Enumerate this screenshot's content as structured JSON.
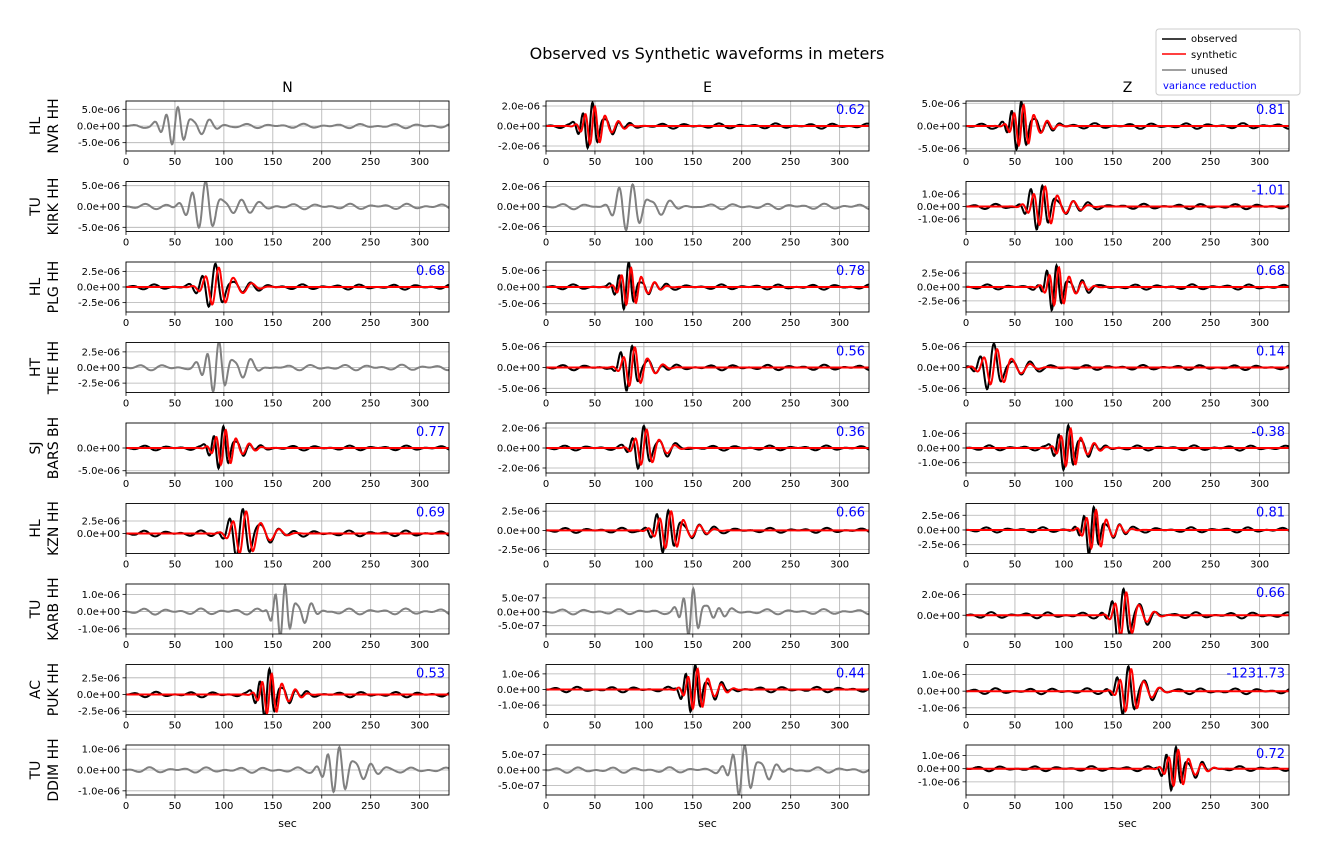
{
  "title": "Observed vs Synthetic waveforms in meters",
  "legend": {
    "placement": "top-right",
    "entries": [
      {
        "label": "observed",
        "color": "#000000"
      },
      {
        "label": "synthetic",
        "color": "#ff0000"
      },
      {
        "label": "unused",
        "color": "#808080"
      },
      {
        "label": "variance reduction",
        "color": "#0000ff"
      }
    ]
  },
  "colors": {
    "observed": "#000000",
    "synthetic": "#ff0000",
    "unused": "#808080",
    "vr": "#0000ff",
    "grid": "#b0b0b0"
  },
  "chart_data": {
    "type": "line",
    "title": "Observed vs Synthetic waveforms in meters",
    "xlabel": "sec",
    "xlim": [
      0,
      330
    ],
    "xticks": [
      0,
      50,
      100,
      150,
      200,
      250,
      300
    ],
    "grid": true,
    "columns": [
      "N",
      "E",
      "Z"
    ],
    "stations": [
      {
        "network": "HL",
        "station": "NVR HH",
        "components": [
          {
            "used": false,
            "ylim": [
              -7.5e-06,
              7.5e-06
            ],
            "yticks": [
              -5e-06,
              0,
              5e-06
            ],
            "ytick_labels": [
              "-5.0e-06",
              "0.0e+00",
              "5.0e-06"
            ],
            "vr": null,
            "wave": {
              "t0": 50,
              "amp": 5.5e-06,
              "period": 12,
              "width": 10
            }
          },
          {
            "used": true,
            "ylim": [
              -2.5e-06,
              2.5e-06
            ],
            "yticks": [
              -2e-06,
              0,
              2e-06
            ],
            "ytick_labels": [
              "-2.0e-06",
              "0.0e+00",
              "2.0e-06"
            ],
            "vr": "0.62",
            "wave": {
              "t0": 45,
              "amp": 2.2e-06,
              "period": 10,
              "width": 8
            }
          },
          {
            "used": true,
            "ylim": [
              -5.5e-06,
              5.5e-06
            ],
            "yticks": [
              -5e-06,
              0,
              5e-06
            ],
            "ytick_labels": [
              "-5.0e-06",
              "0.0e+00",
              "5.0e-06"
            ],
            "vr": "0.81",
            "wave": {
              "t0": 54,
              "amp": 5.2e-06,
              "period": 10,
              "width": 8
            }
          }
        ]
      },
      {
        "network": "TU",
        "station": "KIRK HH",
        "components": [
          {
            "used": false,
            "ylim": [
              -6e-06,
              6e-06
            ],
            "yticks": [
              -5e-06,
              0,
              5e-06
            ],
            "ytick_labels": [
              "-5.0e-06",
              "0.0e+00",
              "5.0e-06"
            ],
            "vr": null,
            "wave": {
              "t0": 78,
              "amp": 5.5e-06,
              "period": 14,
              "width": 12
            }
          },
          {
            "used": false,
            "ylim": [
              -2.5e-06,
              2.5e-06
            ],
            "yticks": [
              -2e-06,
              0,
              2e-06
            ],
            "ytick_labels": [
              "-2.0e-06",
              "0.0e+00",
              "2.0e-06"
            ],
            "vr": null,
            "wave": {
              "t0": 85,
              "amp": 2.3e-06,
              "period": 14,
              "width": 12
            }
          },
          {
            "used": true,
            "ylim": [
              -2e-06,
              2e-06
            ],
            "yticks": [
              -1e-06,
              0,
              1e-06
            ],
            "ytick_labels": [
              "-1.0e-06",
              "0.0e+00",
              "1.0e-06"
            ],
            "vr": "-1.01",
            "wave": {
              "t0": 75,
              "amp": 1.8e-06,
              "period": 12,
              "width": 10
            }
          }
        ]
      },
      {
        "network": "HL",
        "station": "PLG HH",
        "components": [
          {
            "used": true,
            "ylim": [
              -4e-06,
              4e-06
            ],
            "yticks": [
              -2.5e-06,
              0,
              2.5e-06
            ],
            "ytick_labels": [
              "-2.5e-06",
              "0.0e+00",
              "2.5e-06"
            ],
            "vr": "0.68",
            "wave": {
              "t0": 88,
              "amp": 3.5e-06,
              "period": 14,
              "width": 10
            }
          },
          {
            "used": true,
            "ylim": [
              -7.5e-06,
              7.5e-06
            ],
            "yticks": [
              -5e-06,
              0,
              5e-06
            ],
            "ytick_labels": [
              "-5.0e-06",
              "0.0e+00",
              "5.0e-06"
            ],
            "vr": "0.78",
            "wave": {
              "t0": 82,
              "amp": 6.5e-06,
              "period": 10,
              "width": 8
            }
          },
          {
            "used": true,
            "ylim": [
              -4.5e-06,
              4.5e-06
            ],
            "yticks": [
              -2.5e-06,
              0,
              2.5e-06
            ],
            "ytick_labels": [
              "-2.5e-06",
              "0.0e+00",
              "2.5e-06"
            ],
            "vr": "0.68",
            "wave": {
              "t0": 90,
              "amp": 4e-06,
              "period": 10,
              "width": 8
            }
          }
        ]
      },
      {
        "network": "HT",
        "station": "THE HH",
        "components": [
          {
            "used": false,
            "ylim": [
              -4e-06,
              4e-06
            ],
            "yticks": [
              -2.5e-06,
              0,
              2.5e-06
            ],
            "ytick_labels": [
              "-2.5e-06",
              "0.0e+00",
              "2.5e-06"
            ],
            "vr": null,
            "wave": {
              "t0": 92,
              "amp": 3.8e-06,
              "period": 12,
              "width": 10
            }
          },
          {
            "used": true,
            "ylim": [
              -6e-06,
              6e-06
            ],
            "yticks": [
              -5e-06,
              0,
              5e-06
            ],
            "ytick_labels": [
              "-5.0e-06",
              "0.0e+00",
              "5.0e-06"
            ],
            "vr": "0.56",
            "wave": {
              "t0": 85,
              "amp": 5.5e-06,
              "period": 12,
              "width": 8
            }
          },
          {
            "used": true,
            "ylim": [
              -6e-06,
              6e-06
            ],
            "yticks": [
              -5e-06,
              0,
              5e-06
            ],
            "ytick_labels": [
              "-5.0e-06",
              "0.0e+00",
              "5.0e-06"
            ],
            "vr": "0.14",
            "wave": {
              "t0": 25,
              "amp": 5e-06,
              "period": 14,
              "width": 10
            }
          }
        ]
      },
      {
        "network": "SJ",
        "station": "BARS BH",
        "components": [
          {
            "used": true,
            "ylim": [
              -5.5e-06,
              5.5e-06
            ],
            "yticks": [
              -5e-06,
              0
            ],
            "ytick_labels": [
              "-5.0e-06",
              "0.0e+00"
            ],
            "vr": "0.77",
            "wave": {
              "t0": 97,
              "amp": 4.5e-06,
              "period": 10,
              "width": 8
            }
          },
          {
            "used": true,
            "ylim": [
              -2.5e-06,
              2.5e-06
            ],
            "yticks": [
              -2e-06,
              0,
              2e-06
            ],
            "ytick_labels": [
              "-2.0e-06",
              "0.0e+00",
              "2.0e-06"
            ],
            "vr": "0.36",
            "wave": {
              "t0": 97,
              "amp": 2.1e-06,
              "period": 12,
              "width": 8
            }
          },
          {
            "used": true,
            "ylim": [
              -1.7e-06,
              1.7e-06
            ],
            "yticks": [
              -1e-06,
              0,
              1e-06
            ],
            "ytick_labels": [
              "-1.0e-06",
              "0.0e+00",
              "1.0e-06"
            ],
            "vr": "-0.38",
            "wave": {
              "t0": 102,
              "amp": 1.5e-06,
              "period": 10,
              "width": 8
            }
          }
        ]
      },
      {
        "network": "HL",
        "station": "KZN HH",
        "components": [
          {
            "used": true,
            "ylim": [
              -4e-06,
              6e-06
            ],
            "yticks": [
              0,
              2.5e-06
            ],
            "ytick_labels": [
              "0.0e+00",
              "2.5e-06"
            ],
            "vr": "0.69",
            "wave": {
              "t0": 116,
              "amp": 5e-06,
              "period": 14,
              "width": 10
            }
          },
          {
            "used": true,
            "ylim": [
              -3e-06,
              3.5e-06
            ],
            "yticks": [
              -2.5e-06,
              0,
              2.5e-06
            ],
            "ytick_labels": [
              "-2.5e-06",
              "0.0e+00",
              "2.5e-06"
            ],
            "vr": "0.66",
            "wave": {
              "t0": 122,
              "amp": 2.8e-06,
              "period": 12,
              "width": 10
            }
          },
          {
            "used": true,
            "ylim": [
              -4e-06,
              4.5e-06
            ],
            "yticks": [
              -2.5e-06,
              0,
              2.5e-06
            ],
            "ytick_labels": [
              "-2.5e-06",
              "0.0e+00",
              "2.5e-06"
            ],
            "vr": "0.81",
            "wave": {
              "t0": 128,
              "amp": 3.8e-06,
              "period": 10,
              "width": 8
            }
          }
        ]
      },
      {
        "network": "TU",
        "station": "KARB HH",
        "components": [
          {
            "used": false,
            "ylim": [
              -1.3e-06,
              1.6e-06
            ],
            "yticks": [
              -1e-06,
              0,
              1e-06
            ],
            "ytick_labels": [
              "-1.0e-06",
              "0.0e+00",
              "1.0e-06"
            ],
            "vr": null,
            "wave": {
              "t0": 160,
              "amp": 1.5e-06,
              "period": 10,
              "width": 8
            }
          },
          {
            "used": false,
            "ylim": [
              -8e-07,
              1e-06
            ],
            "yticks": [
              -5e-07,
              0,
              5e-07
            ],
            "ytick_labels": [
              "-5.0e-07",
              "0.0e+00",
              "5.0e-07"
            ],
            "vr": null,
            "wave": {
              "t0": 148,
              "amp": 8e-07,
              "period": 10,
              "width": 8
            }
          },
          {
            "used": true,
            "ylim": [
              -1.8e-06,
              3e-06
            ],
            "yticks": [
              0,
              2e-06
            ],
            "ytick_labels": [
              "0.0e+00",
              "2.0e-06"
            ],
            "vr": "0.66",
            "wave": {
              "t0": 158,
              "amp": 2.5e-06,
              "period": 12,
              "width": 8
            }
          }
        ]
      },
      {
        "network": "AC",
        "station": "PUK HH",
        "components": [
          {
            "used": true,
            "ylim": [
              -3e-06,
              4.5e-06
            ],
            "yticks": [
              -2.5e-06,
              0,
              2.5e-06
            ],
            "ytick_labels": [
              "-2.5e-06",
              "0.0e+00",
              "2.5e-06"
            ],
            "vr": "0.53",
            "wave": {
              "t0": 144,
              "amp": 3.5e-06,
              "period": 10,
              "width": 8
            }
          },
          {
            "used": true,
            "ylim": [
              -1.6e-06,
              1.6e-06
            ],
            "yticks": [
              -1e-06,
              0,
              1e-06
            ],
            "ytick_labels": [
              "-1.0e-06",
              "0.0e+00",
              "1.0e-06"
            ],
            "vr": "0.44",
            "wave": {
              "t0": 150,
              "amp": 1.5e-06,
              "period": 10,
              "width": 8
            }
          },
          {
            "used": true,
            "ylim": [
              -1.4e-06,
              1.6e-06
            ],
            "yticks": [
              -1e-06,
              0,
              1e-06
            ],
            "ytick_labels": [
              "-1.0e-06",
              "0.0e+00",
              "1.0e-06"
            ],
            "vr": "-1231.73",
            "wave": {
              "t0": 163,
              "amp": 1.5e-06,
              "period": 12,
              "width": 8
            }
          }
        ]
      },
      {
        "network": "TU",
        "station": "DDIM HH",
        "components": [
          {
            "used": false,
            "ylim": [
              -1.2e-06,
              1.2e-06
            ],
            "yticks": [
              -1e-06,
              0,
              1e-06
            ],
            "ytick_labels": [
              "-1.0e-06",
              "0.0e+00",
              "1.0e-06"
            ],
            "vr": null,
            "wave": {
              "t0": 215,
              "amp": 1.1e-06,
              "period": 12,
              "width": 10
            }
          },
          {
            "used": false,
            "ylim": [
              -8e-07,
              8e-07
            ],
            "yticks": [
              -5e-07,
              0,
              5e-07
            ],
            "ytick_labels": [
              "-5.0e-07",
              "0.0e+00",
              "5.0e-07"
            ],
            "vr": null,
            "wave": {
              "t0": 200,
              "amp": 7.5e-07,
              "period": 12,
              "width": 10
            }
          },
          {
            "used": true,
            "ylim": [
              -2e-06,
              1.8e-06
            ],
            "yticks": [
              -1e-06,
              0,
              1e-06
            ],
            "ytick_labels": [
              "-1.0e-06",
              "0.0e+00",
              "1.0e-06"
            ],
            "vr": "0.72",
            "wave": {
              "t0": 212,
              "amp": 1.6e-06,
              "period": 10,
              "width": 8
            }
          }
        ]
      }
    ]
  }
}
